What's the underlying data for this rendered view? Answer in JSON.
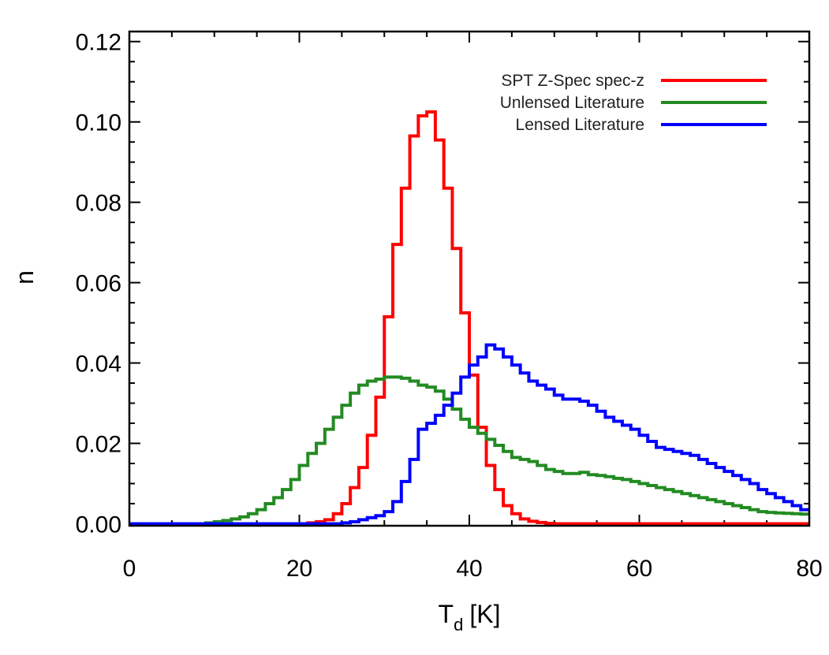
{
  "chart_data": {
    "type": "line",
    "style": "step histogram",
    "xlabel": "T",
    "xlabel_subscript": "d",
    "xlabel_unit": "[K]",
    "ylabel": "n",
    "xlim": [
      0,
      80
    ],
    "ylim": [
      -0.0005,
      0.1225
    ],
    "grid": false,
    "legend_position": "top-right",
    "x_ticks": [
      0,
      20,
      40,
      60,
      80
    ],
    "x_tick_labels": [
      "0",
      "20",
      "40",
      "60",
      "80"
    ],
    "x_minor_step": 5,
    "y_ticks": [
      0.0,
      0.02,
      0.04,
      0.06,
      0.08,
      0.1,
      0.12
    ],
    "y_tick_labels": [
      "0.00",
      "0.02",
      "0.04",
      "0.06",
      "0.08",
      "0.10",
      "0.12"
    ],
    "y_minor_step": 0.005,
    "bin_start": 0,
    "bin_width": 1,
    "series": [
      {
        "name": "SPT Z-Spec spec-z",
        "color": "#ff0000",
        "values": [
          0,
          0,
          0,
          0,
          0,
          0,
          0,
          0,
          0,
          0,
          0,
          0,
          0,
          0,
          0,
          0,
          0,
          0,
          0,
          0,
          0,
          0.0002,
          0.0005,
          0.001,
          0.0025,
          0.005,
          0.009,
          0.014,
          0.022,
          0.0315,
          0.0515,
          0.0695,
          0.0835,
          0.0965,
          0.1015,
          0.1025,
          0.0955,
          0.0835,
          0.0685,
          0.0525,
          0.037,
          0.024,
          0.0145,
          0.0085,
          0.0045,
          0.0025,
          0.0012,
          0.0006,
          0.0003,
          0.0001,
          0,
          0,
          0,
          0,
          0,
          0,
          0,
          0,
          0,
          0,
          0,
          0,
          0,
          0,
          0,
          0,
          0,
          0,
          0,
          0,
          0,
          0,
          0,
          0,
          0,
          0,
          0,
          0,
          0,
          0
        ]
      },
      {
        "name": "Unlensed Literature",
        "color": "#228b22",
        "values": [
          0,
          0,
          0,
          0,
          0,
          0,
          0,
          0,
          0,
          0.0002,
          0.0005,
          0.0008,
          0.0012,
          0.0017,
          0.0025,
          0.0035,
          0.005,
          0.0065,
          0.0085,
          0.011,
          0.0145,
          0.0175,
          0.02,
          0.0235,
          0.0265,
          0.0295,
          0.0325,
          0.0345,
          0.0355,
          0.036,
          0.0365,
          0.0365,
          0.0362,
          0.0355,
          0.0345,
          0.034,
          0.033,
          0.031,
          0.0285,
          0.026,
          0.024,
          0.0225,
          0.021,
          0.0195,
          0.018,
          0.0165,
          0.016,
          0.0155,
          0.0145,
          0.0135,
          0.013,
          0.0125,
          0.0125,
          0.0128,
          0.0122,
          0.012,
          0.0117,
          0.0113,
          0.011,
          0.0105,
          0.01,
          0.0095,
          0.009,
          0.0085,
          0.008,
          0.0075,
          0.007,
          0.0065,
          0.006,
          0.0055,
          0.005,
          0.0045,
          0.004,
          0.0035,
          0.003,
          0.0028,
          0.0027,
          0.0026,
          0.0025,
          0.0024
        ]
      },
      {
        "name": "Lensed Literature",
        "color": "#0000ff",
        "values": [
          0,
          0,
          0,
          0,
          0,
          0,
          0,
          0,
          0,
          0,
          0,
          0,
          0,
          0,
          0,
          0,
          0,
          0,
          0,
          0,
          0,
          0,
          0,
          0,
          0,
          0.0002,
          0.0005,
          0.001,
          0.0015,
          0.002,
          0.003,
          0.0055,
          0.0105,
          0.016,
          0.0235,
          0.025,
          0.027,
          0.0295,
          0.0325,
          0.0365,
          0.0395,
          0.0415,
          0.0445,
          0.0435,
          0.0415,
          0.0395,
          0.0375,
          0.0355,
          0.0345,
          0.0335,
          0.032,
          0.031,
          0.031,
          0.0305,
          0.0295,
          0.028,
          0.0265,
          0.0255,
          0.0245,
          0.0235,
          0.022,
          0.0205,
          0.019,
          0.0185,
          0.018,
          0.0175,
          0.017,
          0.016,
          0.015,
          0.014,
          0.013,
          0.012,
          0.011,
          0.01,
          0.0085,
          0.0075,
          0.0065,
          0.0055,
          0.0045,
          0.0035
        ]
      }
    ]
  }
}
